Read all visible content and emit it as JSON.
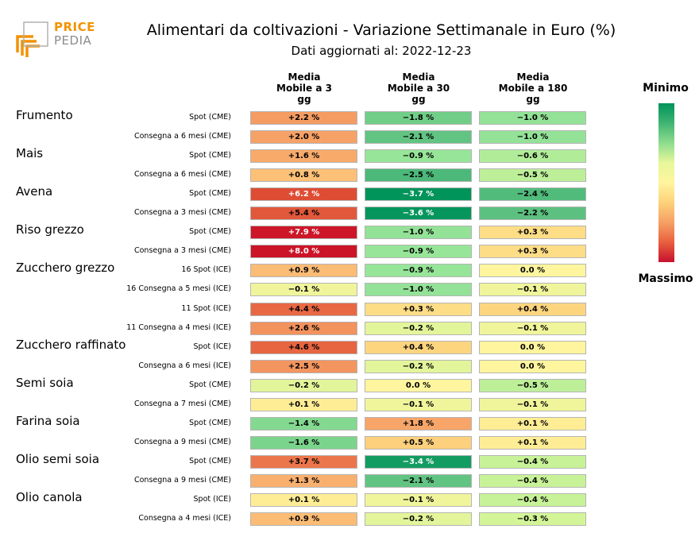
{
  "logo": {
    "word_top": "PRICE",
    "word_bottom": "PEDIA",
    "colors": {
      "orange": "#f39200",
      "gray": "#8c8c8c"
    }
  },
  "title": "Alimentari da coltivazioni - Variazione Settimanale in Euro (%)",
  "subtitle": "Dati aggiornati al: 2022-12-23",
  "legend": {
    "min_label": "Minimo",
    "max_label": "Massimo",
    "min_color": "#00935a",
    "max_color": "#c8102e"
  },
  "chart_data": {
    "type": "heatmap",
    "columns": [
      "Media\nMobile a 3\ngg",
      "Media\nMobile a 30\ngg",
      "Media\nMobile a 180\ngg"
    ],
    "groups": [
      {
        "name": "Frumento",
        "rows": [
          {
            "label": "Spot (CME)",
            "values": [
              "+2.2 %",
              "−1.8 %",
              "−1.0 %"
            ],
            "nums": [
              2.2,
              -1.8,
              -1.0
            ]
          },
          {
            "label": "Consegna a 6 mesi (CME)",
            "values": [
              "+2.0 %",
              "−2.1 %",
              "−1.0 %"
            ],
            "nums": [
              2.0,
              -2.1,
              -1.0
            ]
          }
        ]
      },
      {
        "name": "Mais",
        "rows": [
          {
            "label": "Spot (CME)",
            "values": [
              "+1.6 %",
              "−0.9 %",
              "−0.6 %"
            ],
            "nums": [
              1.6,
              -0.9,
              -0.6
            ]
          },
          {
            "label": "Consegna a 6 mesi (CME)",
            "values": [
              "+0.8 %",
              "−2.5 %",
              "−0.5 %"
            ],
            "nums": [
              0.8,
              -2.5,
              -0.5
            ]
          }
        ]
      },
      {
        "name": "Avena",
        "rows": [
          {
            "label": "Spot (CME)",
            "values": [
              "+6.2 %",
              "−3.7 %",
              "−2.4 %"
            ],
            "nums": [
              6.2,
              -3.7,
              -2.4
            ]
          },
          {
            "label": "Consegna a 3 mesi (CME)",
            "values": [
              "+5.4 %",
              "−3.6 %",
              "−2.2 %"
            ],
            "nums": [
              5.4,
              -3.6,
              -2.2
            ]
          }
        ]
      },
      {
        "name": "Riso grezzo",
        "rows": [
          {
            "label": "Spot (CME)",
            "values": [
              "+7.9 %",
              "−1.0 %",
              "+0.3 %"
            ],
            "nums": [
              7.9,
              -1.0,
              0.3
            ]
          },
          {
            "label": "Consegna a 3 mesi (CME)",
            "values": [
              "+8.0 %",
              "−0.9 %",
              "+0.3 %"
            ],
            "nums": [
              8.0,
              -0.9,
              0.3
            ]
          }
        ]
      },
      {
        "name": "Zucchero grezzo",
        "rows": [
          {
            "label": "16 Spot (ICE)",
            "values": [
              "+0.9 %",
              "−0.9 %",
              "0.0 %"
            ],
            "nums": [
              0.9,
              -0.9,
              0.0
            ]
          },
          {
            "label": "16 Consegna a 5 mesi (ICE)",
            "values": [
              "−0.1 %",
              "−1.0 %",
              "−0.1 %"
            ],
            "nums": [
              -0.1,
              -1.0,
              -0.1
            ]
          },
          {
            "label": "11 Spot (ICE)",
            "values": [
              "+4.4 %",
              "+0.3 %",
              "+0.4 %"
            ],
            "nums": [
              4.4,
              0.3,
              0.4
            ]
          },
          {
            "label": "11 Consegna a 4 mesi (ICE)",
            "values": [
              "+2.6 %",
              "−0.2 %",
              "−0.1 %"
            ],
            "nums": [
              2.6,
              -0.2,
              -0.1
            ]
          }
        ]
      },
      {
        "name": "Zucchero raffinato",
        "rows": [
          {
            "label": "Spot (ICE)",
            "values": [
              "+4.6 %",
              "+0.4 %",
              "0.0 %"
            ],
            "nums": [
              4.6,
              0.4,
              0.0
            ]
          },
          {
            "label": "Consegna a 6 mesi (ICE)",
            "values": [
              "+2.5 %",
              "−0.2 %",
              "0.0 %"
            ],
            "nums": [
              2.5,
              -0.2,
              0.0
            ]
          }
        ]
      },
      {
        "name": "Semi soia",
        "rows": [
          {
            "label": "Spot (CME)",
            "values": [
              "−0.2 %",
              "0.0 %",
              "−0.5 %"
            ],
            "nums": [
              -0.2,
              0.0,
              -0.5
            ]
          },
          {
            "label": "Consegna a 7 mesi (CME)",
            "values": [
              "+0.1 %",
              "−0.1 %",
              "−0.1 %"
            ],
            "nums": [
              0.1,
              -0.1,
              -0.1
            ]
          }
        ]
      },
      {
        "name": "Farina soia",
        "rows": [
          {
            "label": "Spot (CME)",
            "values": [
              "−1.4 %",
              "+1.8 %",
              "+0.1 %"
            ],
            "nums": [
              -1.4,
              1.8,
              0.1
            ]
          },
          {
            "label": "Consegna a 9 mesi (CME)",
            "values": [
              "−1.6 %",
              "+0.5 %",
              "+0.1 %"
            ],
            "nums": [
              -1.6,
              0.5,
              0.1
            ]
          }
        ]
      },
      {
        "name": "Olio semi soia",
        "rows": [
          {
            "label": "Spot (CME)",
            "values": [
              "+3.7 %",
              "−3.4 %",
              "−0.4 %"
            ],
            "nums": [
              3.7,
              -3.4,
              -0.4
            ]
          },
          {
            "label": "Consegna a 9 mesi (CME)",
            "values": [
              "+1.3 %",
              "−2.1 %",
              "−0.4 %"
            ],
            "nums": [
              1.3,
              -2.1,
              -0.4
            ]
          }
        ]
      },
      {
        "name": "Olio canola",
        "rows": [
          {
            "label": "Spot (ICE)",
            "values": [
              "+0.1 %",
              "−0.1 %",
              "−0.4 %"
            ],
            "nums": [
              0.1,
              -0.1,
              -0.4
            ]
          },
          {
            "label": "Consegna a 4 mesi (ICE)",
            "values": [
              "+0.9 %",
              "−0.2 %",
              "−0.3 %"
            ],
            "nums": [
              0.9,
              -0.2,
              -0.3
            ]
          }
        ]
      }
    ]
  }
}
